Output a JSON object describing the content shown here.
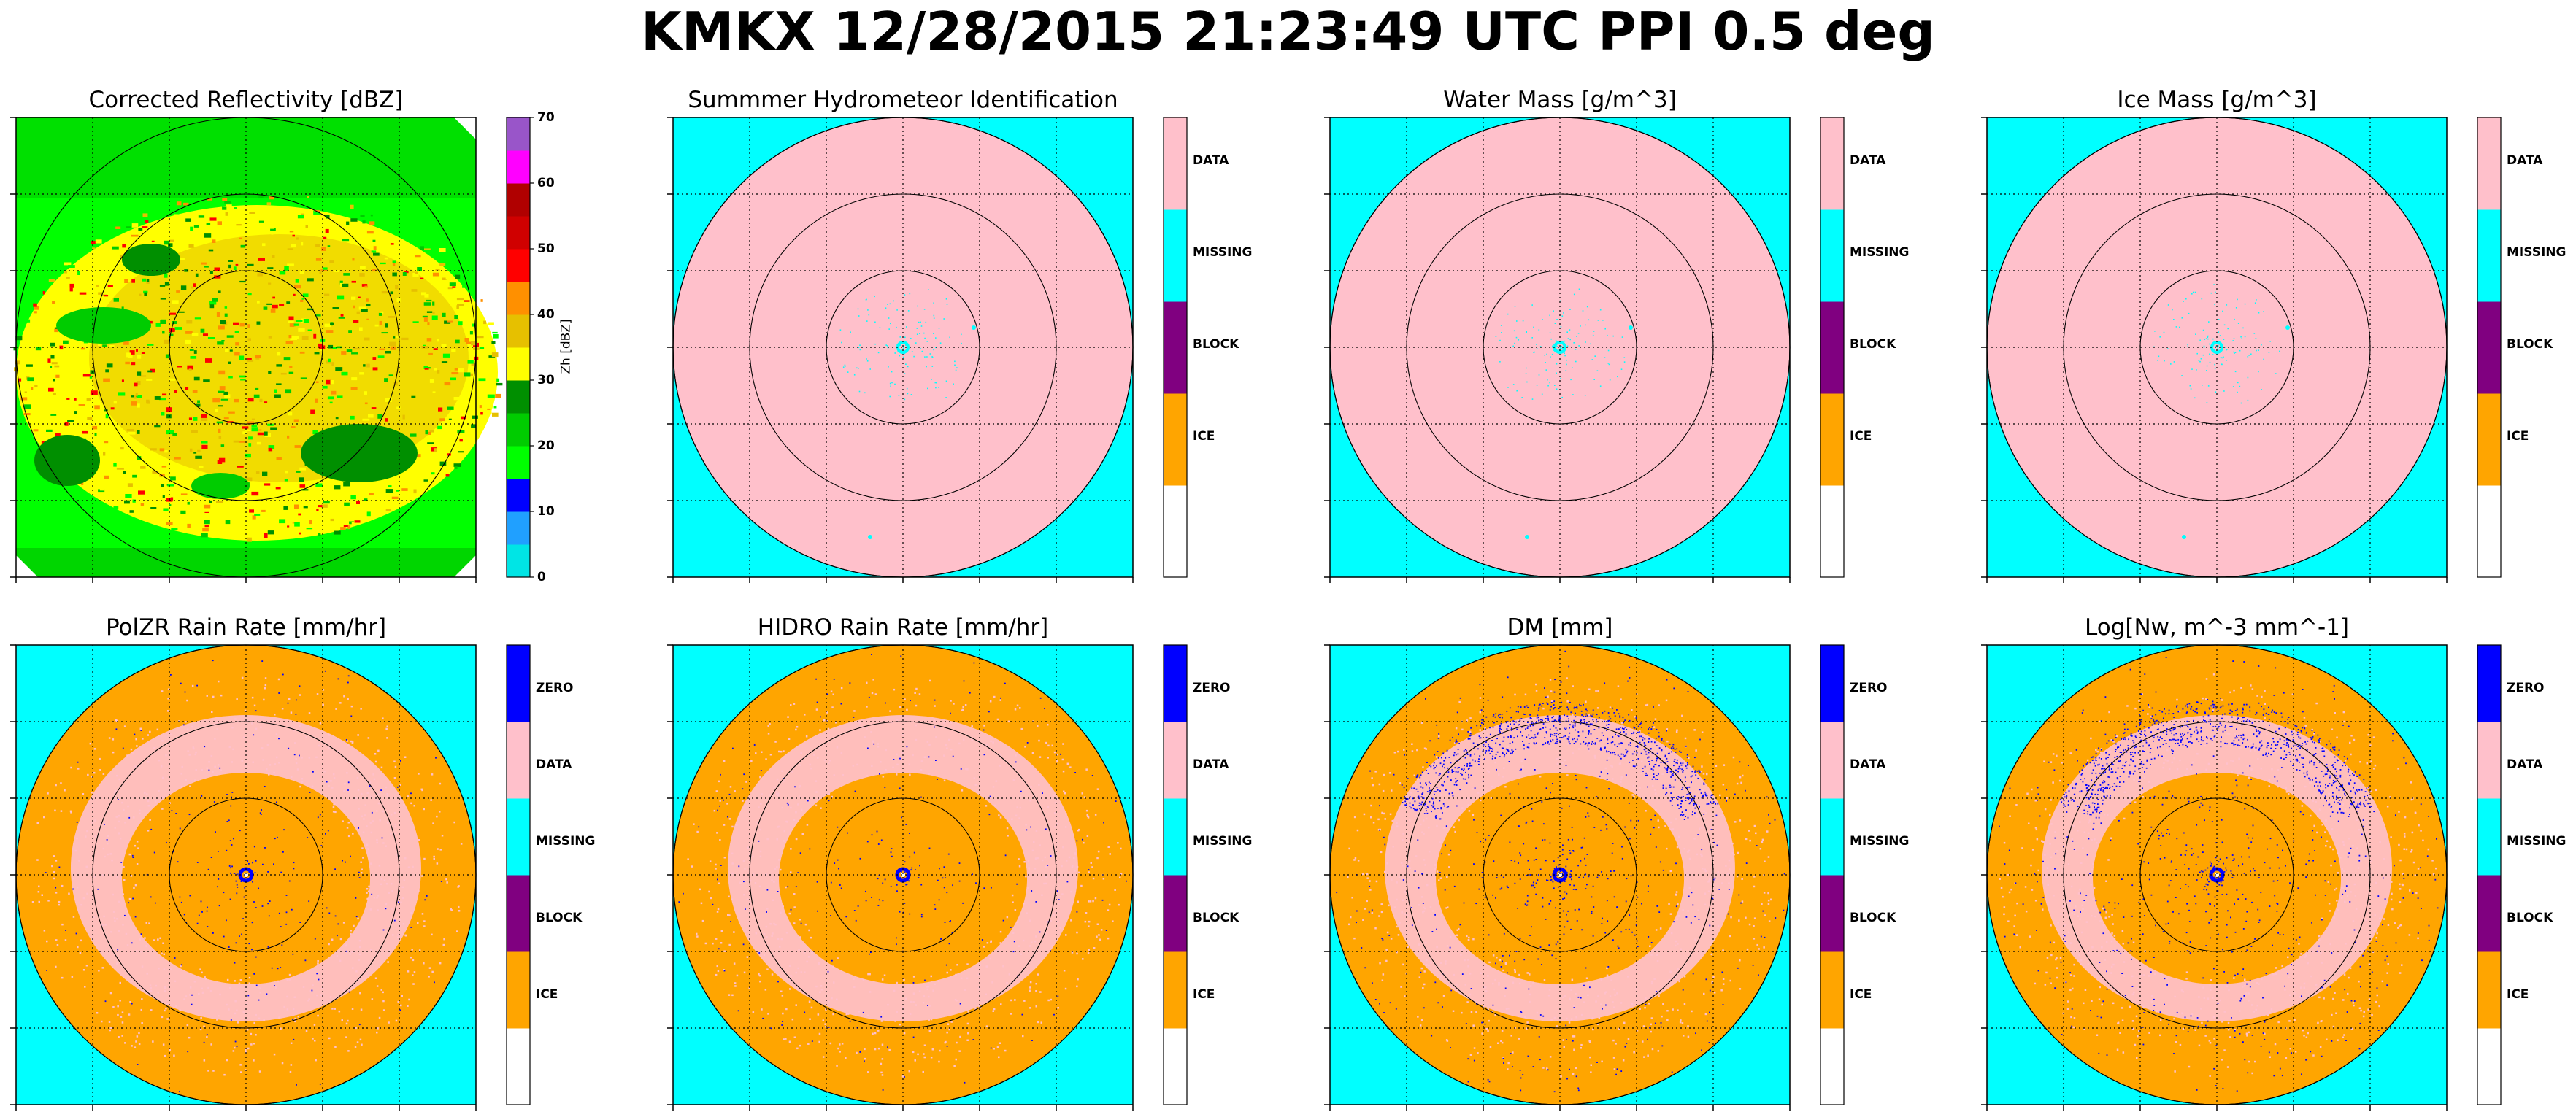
{
  "figure": {
    "suptitle": "KMKX 12/28/2015 21:23:49 UTC PPI 0.5 deg"
  },
  "colors": {
    "ice": "#ffa500",
    "block": "#800080",
    "missing": "#00ffff",
    "data": "#ffc0cb",
    "zero": "#0000ff",
    "blank": "#ffffff"
  },
  "chart_data": [
    {
      "id": "reflectivity",
      "type": "heatmap",
      "title": "Corrected Reflectivity [dBZ]",
      "colorbar": {
        "kind": "continuous",
        "label": "Zh [dBZ]",
        "range": [
          0,
          70
        ],
        "ticks": [
          "0",
          "10",
          "20",
          "30",
          "40",
          "50",
          "60",
          "70"
        ],
        "colors": [
          "#00e5e5",
          "#20a0ff",
          "#0000ff",
          "#00ff00",
          "#00cc00",
          "#008f00",
          "#ffff00",
          "#e6c000",
          "#ff9000",
          "#ff0000",
          "#d00000",
          "#b00000",
          "#ff00ff",
          "#9955c9"
        ]
      },
      "range_rings": 3
    },
    {
      "id": "hid",
      "type": "heatmap",
      "title": "Summmer Hydrometeor Identification",
      "colorbar": {
        "kind": "categorical",
        "categories": [
          "",
          "ICE",
          "BLOCK",
          "MISSING",
          "DATA"
        ],
        "colors": [
          "#ffffff",
          "#ffa500",
          "#800080",
          "#00ffff",
          "#ffc0cb"
        ]
      },
      "range_rings": 3
    },
    {
      "id": "water_mass",
      "type": "heatmap",
      "title": "Water Mass [g/m^3]",
      "colorbar": {
        "kind": "categorical",
        "categories": [
          "",
          "ICE",
          "BLOCK",
          "MISSING",
          "DATA"
        ],
        "colors": [
          "#ffffff",
          "#ffa500",
          "#800080",
          "#00ffff",
          "#ffc0cb"
        ]
      },
      "range_rings": 3
    },
    {
      "id": "ice_mass",
      "type": "heatmap",
      "title": "Ice Mass [g/m^3]",
      "colorbar": {
        "kind": "categorical",
        "categories": [
          "",
          "ICE",
          "BLOCK",
          "MISSING",
          "DATA"
        ],
        "colors": [
          "#ffffff",
          "#ffa500",
          "#800080",
          "#00ffff",
          "#ffc0cb"
        ]
      },
      "range_rings": 3
    },
    {
      "id": "polzr",
      "type": "heatmap",
      "title": "PolZR Rain Rate [mm/hr]",
      "colorbar": {
        "kind": "categorical",
        "categories": [
          "",
          "ICE",
          "BLOCK",
          "MISSING",
          "DATA",
          "ZERO"
        ],
        "colors": [
          "#ffffff",
          "#ffa500",
          "#800080",
          "#00ffff",
          "#ffc0cb",
          "#0000ff"
        ]
      },
      "range_rings": 3
    },
    {
      "id": "hidro",
      "type": "heatmap",
      "title": "HIDRO Rain Rate [mm/hr]",
      "colorbar": {
        "kind": "categorical",
        "categories": [
          "",
          "ICE",
          "BLOCK",
          "MISSING",
          "DATA",
          "ZERO"
        ],
        "colors": [
          "#ffffff",
          "#ffa500",
          "#800080",
          "#00ffff",
          "#ffc0cb",
          "#0000ff"
        ]
      },
      "range_rings": 3
    },
    {
      "id": "dm",
      "type": "heatmap",
      "title": "DM [mm]",
      "colorbar": {
        "kind": "categorical",
        "categories": [
          "",
          "ICE",
          "BLOCK",
          "MISSING",
          "DATA",
          "ZERO"
        ],
        "colors": [
          "#ffffff",
          "#ffa500",
          "#800080",
          "#00ffff",
          "#ffc0cb",
          "#0000ff"
        ]
      },
      "range_rings": 3
    },
    {
      "id": "lognw",
      "type": "heatmap",
      "title": "Log[Nw, m^-3 mm^-1]",
      "colorbar": {
        "kind": "categorical",
        "categories": [
          "",
          "ICE",
          "BLOCK",
          "MISSING",
          "DATA",
          "ZERO"
        ],
        "colors": [
          "#ffffff",
          "#ffa500",
          "#800080",
          "#00ffff",
          "#ffc0cb",
          "#0000ff"
        ]
      },
      "range_rings": 3
    }
  ]
}
